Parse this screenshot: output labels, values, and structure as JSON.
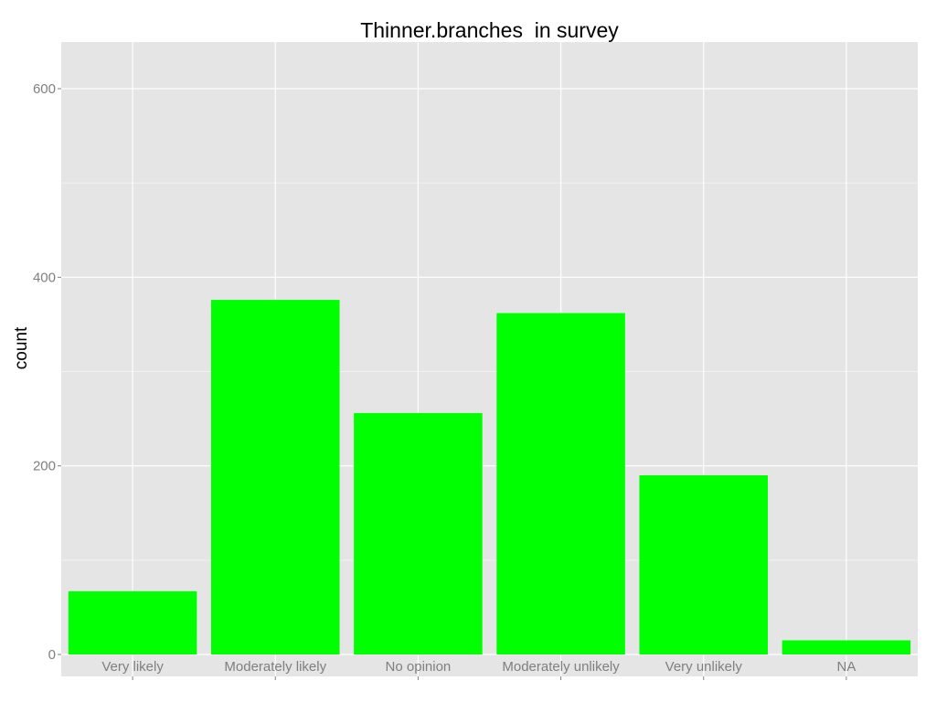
{
  "chart_data": {
    "type": "bar",
    "title": "Thinner.branches  in survey",
    "xlabel": "",
    "ylabel": "count",
    "categories": [
      "Very likely",
      "Moderately likely",
      "No opinion",
      "Moderately unlikely",
      "Very unlikely",
      "NA"
    ],
    "values": [
      67,
      376,
      256,
      362,
      190,
      15
    ],
    "ylim": [
      0,
      650
    ],
    "yticks": [
      0,
      200,
      400,
      600
    ],
    "grid": true,
    "bar_color": "#00ff00",
    "panel_background": "#e5e5e5",
    "grid_color": "#ffffff"
  }
}
